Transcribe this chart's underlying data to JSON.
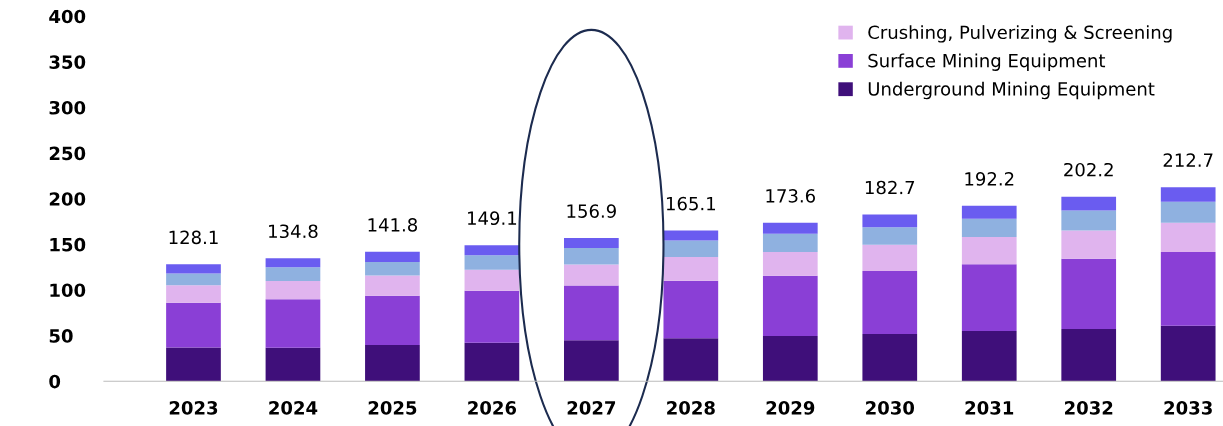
{
  "chart_data": {
    "type": "bar",
    "stacked": true,
    "categories": [
      "2023",
      "2024",
      "2025",
      "2026",
      "2027",
      "2028",
      "2029",
      "2030",
      "2031",
      "2032",
      "2033"
    ],
    "series": [
      {
        "name": "Underground Mining Equipment",
        "color": "#3f0f7a",
        "values": [
          37.1,
          36.8,
          39.8,
          42.1,
          44.9,
          47.1,
          49.6,
          51.7,
          55.2,
          57.2,
          60.7
        ]
      },
      {
        "name": "Surface Mining Equipment",
        "color": "#8a3fd6",
        "values": [
          49,
          53,
          54,
          57,
          60,
          63,
          66,
          69,
          73,
          77,
          81
        ]
      },
      {
        "name": "Crushing, Pulverizing & Screening",
        "color": "#e0b4ee",
        "values": [
          19,
          20,
          22,
          23,
          23,
          26,
          26,
          29,
          30,
          31,
          32
        ]
      },
      {
        "color": "#8fb1e0",
        "values": [
          13,
          15,
          15,
          16,
          18,
          18,
          20,
          19,
          20,
          22,
          23
        ]
      },
      {
        "color": "#6a5cf0",
        "values": [
          10,
          10,
          11,
          11,
          11,
          11,
          12,
          14,
          14,
          15,
          16
        ]
      }
    ],
    "totals": [
      "128.1",
      "134.8",
      "141.8",
      "149.1",
      "156.9",
      "165.1",
      "173.6",
      "182.7",
      "192.2",
      "202.2",
      "212.7"
    ],
    "ylim": [
      0,
      400
    ],
    "yticks": [
      0,
      50,
      100,
      150,
      200,
      250,
      300,
      350,
      400
    ],
    "grid": false,
    "legend": "top right"
  }
}
